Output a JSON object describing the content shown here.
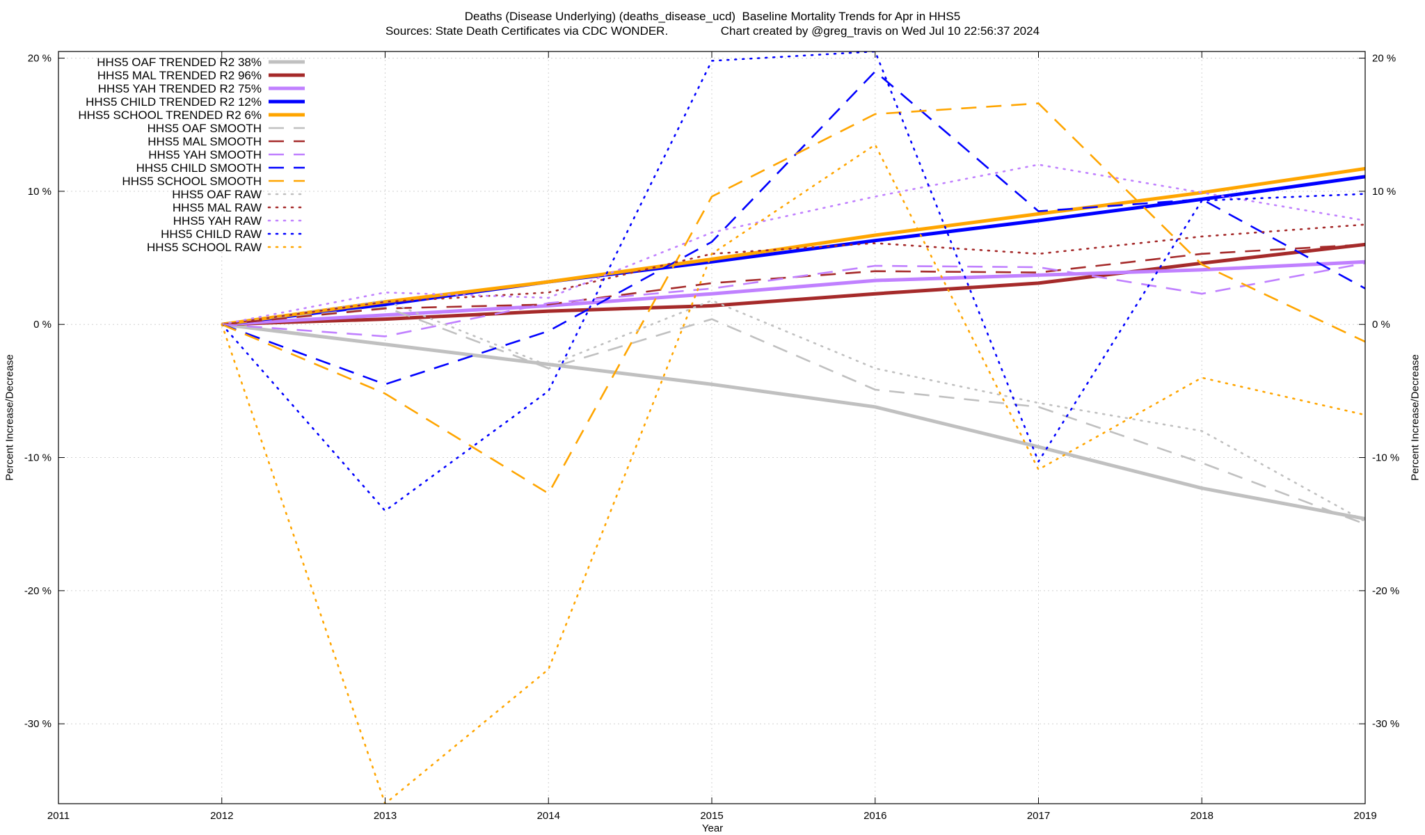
{
  "chart_data": {
    "type": "line",
    "title_line1": "Deaths (Disease Underlying) (deaths_disease_ucd)  Baseline Mortality Trends for Apr in HHS5",
    "title_line2": "Sources: State Death Certificates via CDC WONDER.                Chart created by @greg_travis on Wed Jul 10 22:56:37 2024",
    "xlabel": "Year",
    "ylabel": "Percent Increase/Decrease",
    "y2label": "Percent Increase/Decrease",
    "xlim": [
      2011,
      2019
    ],
    "ylim": [
      -36,
      20.5
    ],
    "x_ticks": [
      "2011",
      "2012",
      "2013",
      "2014",
      "2015",
      "2016",
      "2017",
      "2018",
      "2019"
    ],
    "y_ticks": [
      {
        "value": 20,
        "label": "20 %"
      },
      {
        "value": 10,
        "label": "10 %"
      },
      {
        "value": 0,
        "label": "0 %"
      },
      {
        "value": -10,
        "label": "-10 %"
      },
      {
        "value": -20,
        "label": "-20 %"
      },
      {
        "value": -30,
        "label": "-30 %"
      }
    ],
    "grid": true,
    "legend_position": "top-left",
    "x": [
      2012,
      2013,
      2014,
      2015,
      2016,
      2017,
      2018,
      2019
    ],
    "series": [
      {
        "name": "HHS5 OAF TRENDED R2  38%",
        "style": "solid",
        "color": "#c0c0c0",
        "values": [
          0,
          -1.5,
          -3.0,
          -4.5,
          -6.2,
          -9.2,
          -12.3,
          -14.6
        ]
      },
      {
        "name": "HHS5 MAL TRENDED R2  96%",
        "style": "solid",
        "color": "#a52a2a",
        "values": [
          0,
          0.4,
          1.0,
          1.4,
          2.3,
          3.1,
          4.6,
          6.0
        ]
      },
      {
        "name": "HHS5 YAH TRENDED R2  75%",
        "style": "solid",
        "color": "#c080ff",
        "values": [
          0,
          0.7,
          1.4,
          2.3,
          3.3,
          3.7,
          4.1,
          4.7
        ]
      },
      {
        "name": "HHS5 CHILD TRENDED R2  12%",
        "style": "solid",
        "color": "#0000ff",
        "values": [
          0,
          1.5,
          3.2,
          4.7,
          6.3,
          7.8,
          9.4,
          11.1
        ]
      },
      {
        "name": "HHS5 SCHOOL TRENDED R2   6%",
        "style": "solid",
        "color": "#ffa500",
        "values": [
          0,
          1.7,
          3.2,
          4.9,
          6.7,
          8.3,
          9.9,
          11.7
        ]
      },
      {
        "name": "HHS5 OAF SMOOTH",
        "style": "dash",
        "color": "#c0c0c0",
        "values": [
          0,
          1.3,
          -3.3,
          0.4,
          -4.9,
          -6.2,
          -10.4,
          -15.0
        ]
      },
      {
        "name": "HHS5 MAL SMOOTH",
        "style": "dash",
        "color": "#a52a2a",
        "values": [
          0,
          1.2,
          1.5,
          3.1,
          4.0,
          3.9,
          5.3,
          6.0
        ]
      },
      {
        "name": "HHS5 YAH SMOOTH",
        "style": "dash",
        "color": "#c080ff",
        "values": [
          0,
          -0.9,
          1.6,
          2.7,
          4.4,
          4.3,
          2.3,
          4.6
        ]
      },
      {
        "name": "HHS5 CHILD SMOOTH",
        "style": "dash",
        "color": "#0000ff",
        "values": [
          0,
          -4.5,
          -0.5,
          6.2,
          19.0,
          8.5,
          9.4,
          2.7
        ]
      },
      {
        "name": "HHS5 SCHOOL SMOOTH",
        "style": "dash",
        "color": "#ffa500",
        "values": [
          0,
          -5.2,
          -12.7,
          9.6,
          15.8,
          16.6,
          4.5,
          -1.3
        ]
      },
      {
        "name": "HHS5 OAF RAW",
        "style": "dot",
        "color": "#c0c0c0",
        "values": [
          0,
          1.8,
          -3.1,
          1.8,
          -3.3,
          -5.9,
          -8.0,
          -14.8
        ]
      },
      {
        "name": "HHS5 MAL RAW",
        "style": "dot",
        "color": "#a52a2a",
        "values": [
          0,
          1.7,
          2.4,
          5.3,
          6.1,
          5.3,
          6.6,
          7.5
        ]
      },
      {
        "name": "HHS5 YAH RAW",
        "style": "dot",
        "color": "#c080ff",
        "values": [
          0,
          2.4,
          2.0,
          6.9,
          9.6,
          12.0,
          9.9,
          7.8
        ]
      },
      {
        "name": "HHS5 CHILD RAW",
        "style": "dot",
        "color": "#0000ff",
        "values": [
          0,
          -14.0,
          -5.0,
          19.8,
          20.5,
          -10.3,
          9.3,
          9.8
        ]
      },
      {
        "name": "HHS5 SCHOOL RAW",
        "style": "dot",
        "color": "#ffa500",
        "values": [
          0,
          -36.0,
          -25.9,
          5.3,
          13.5,
          -10.9,
          -4.0,
          -6.8
        ]
      }
    ]
  }
}
